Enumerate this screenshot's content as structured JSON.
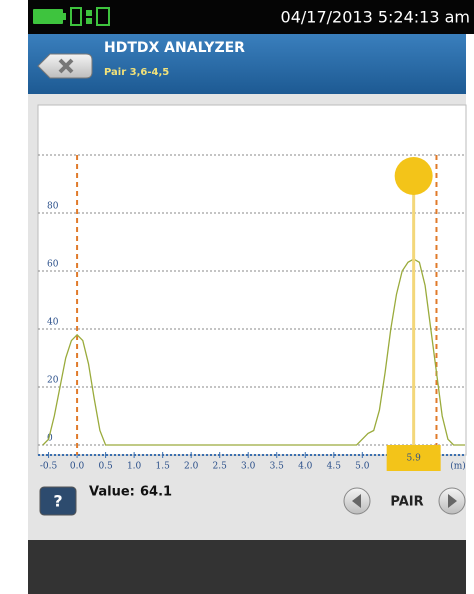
{
  "status_bar": {
    "datetime": "04/17/2013 5:24:13 am"
  },
  "header": {
    "title": "HDTDX ANALYZER",
    "subtitle": "Pair 3,6-4,5"
  },
  "chart_data": {
    "type": "line",
    "x": [
      -0.6,
      -0.5,
      -0.4,
      -0.3,
      -0.2,
      -0.1,
      0,
      0.1,
      0.2,
      0.3,
      0.4,
      0.5,
      4.9,
      5.0,
      5.1,
      5.2,
      5.3,
      5.4,
      5.5,
      5.6,
      5.7,
      5.8,
      5.9,
      6.0,
      6.1,
      6.2,
      6.3,
      6.4,
      6.5,
      6.6,
      6.8
    ],
    "series": [
      {
        "color": "#9aab3c",
        "values": [
          0,
          2,
          10,
          20,
          30,
          36,
          38,
          36,
          28,
          16,
          5,
          0,
          0,
          2,
          4,
          5,
          12,
          25,
          40,
          52,
          60,
          63,
          64.1,
          63,
          55,
          40,
          25,
          10,
          2,
          0,
          0
        ]
      }
    ],
    "xlim": [
      -0.65,
      6.8
    ],
    "ylim": [
      0,
      100
    ],
    "xticks": [
      -0.5,
      {
        "value": 0,
        "label": "0.0"
      },
      0.5,
      {
        "value": 1,
        "label": "1.0"
      },
      1.5,
      {
        "value": 2,
        "label": "2.0"
      },
      2.5,
      {
        "value": 3,
        "label": "3.0"
      },
      3.5,
      {
        "value": 4,
        "label": "4.0"
      },
      4.5,
      {
        "value": 5,
        "label": "5.0"
      }
    ],
    "yticks": [
      0,
      20,
      40,
      60,
      80
    ],
    "x_unit": "(m)",
    "grid": true,
    "markers": [
      {
        "x": 0,
        "color": "#e07a2a"
      },
      {
        "x": 6.3,
        "color": "#e07a2a"
      }
    ],
    "cursor": {
      "x": 5.9,
      "color": "#f3c419"
    }
  },
  "readout": {
    "label": "Value:",
    "value": 64.1
  },
  "buttons": {
    "help": "?",
    "pair": "PAIR"
  }
}
